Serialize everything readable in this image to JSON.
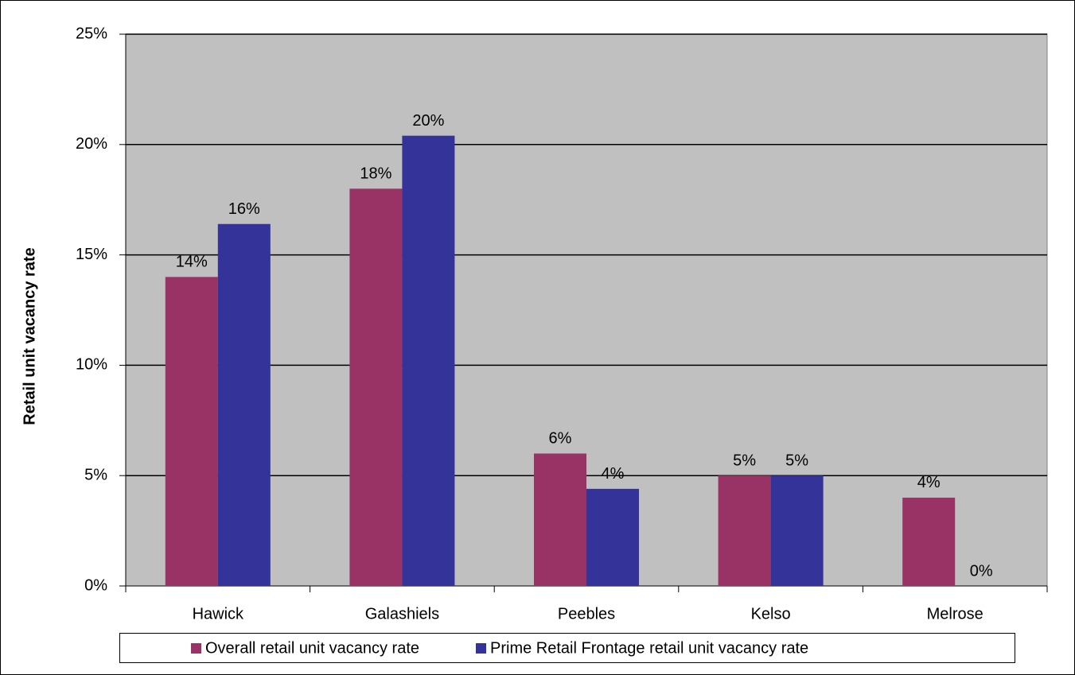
{
  "chart_data": {
    "type": "bar",
    "y_label": "Retail unit vacancy rate",
    "categories": [
      "Hawick",
      "Galashiels",
      "Peebles",
      "Kelso",
      "Melrose"
    ],
    "series": [
      {
        "name": "Overall retail unit vacancy rate",
        "color": "#993366",
        "values": [
          14,
          18,
          6,
          5,
          4
        ],
        "value_labels": [
          "14%",
          "18%",
          "6%",
          "5%",
          "4%"
        ]
      },
      {
        "name": "Prime Retail Frontage retail unit vacancy rate",
        "color": "#333399",
        "values": [
          16.4,
          20.4,
          4.4,
          5,
          0
        ],
        "value_labels": [
          "16%",
          "20%",
          "4%",
          "5%",
          "0%"
        ]
      }
    ],
    "ylim": [
      0,
      25
    ],
    "yticks": [
      {
        "value": 0,
        "label": "0%"
      },
      {
        "value": 5,
        "label": "5%"
      },
      {
        "value": 10,
        "label": "10%"
      },
      {
        "value": 15,
        "label": "15%"
      },
      {
        "value": 20,
        "label": "20%"
      },
      {
        "value": 25,
        "label": "25%"
      }
    ],
    "grid": true,
    "plot_background": "#c0c0c0",
    "legend": "bottom"
  }
}
